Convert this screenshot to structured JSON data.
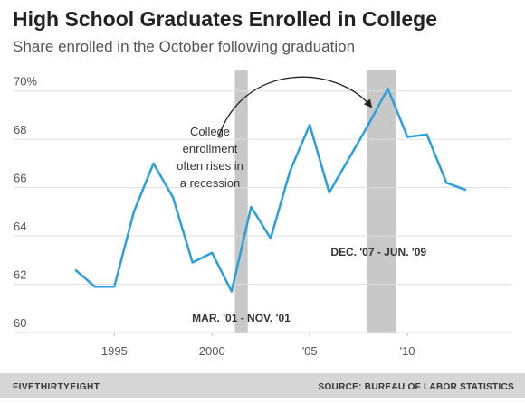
{
  "chart_data": {
    "type": "line",
    "title": "High School Graduates Enrolled in College",
    "subtitle": "Share enrolled in the October following graduation",
    "x": [
      1993,
      1994,
      1995,
      1996,
      1997,
      1998,
      1999,
      2000,
      2001,
      2002,
      2003,
      2004,
      2005,
      2006,
      2007,
      2008,
      2009,
      2010,
      2011,
      2012,
      2013
    ],
    "series": [
      {
        "name": "Enrolled",
        "color": "#2b9fd9",
        "values": [
          62.6,
          61.9,
          61.9,
          65.0,
          67.0,
          65.6,
          62.9,
          63.3,
          61.7,
          65.2,
          63.9,
          66.7,
          68.6,
          65.8,
          67.2,
          68.6,
          70.1,
          68.1,
          68.2,
          66.2,
          65.9
        ]
      }
    ],
    "xlim": [
      1991,
      2015
    ],
    "ylim": [
      60,
      71
    ],
    "xticks": [
      1995,
      2000,
      {
        "value": 2005,
        "label": "'05"
      },
      {
        "value": 2010,
        "label": "'10"
      }
    ],
    "yticks": [
      60,
      62,
      64,
      66,
      68,
      {
        "value": 70,
        "label": "70%"
      }
    ],
    "grid": true,
    "recessions": [
      {
        "start": 2001.17,
        "end": 2001.83,
        "label": "MAR. '01 - NOV. '01"
      },
      {
        "start": 2007.92,
        "end": 2009.42,
        "label": "DEC. '07 - JUN. '09"
      }
    ],
    "recession_color": "#c8c8c8",
    "annotation": [
      "College",
      "enrollment",
      "often rises in",
      "a recession"
    ],
    "brand": "FIVETHIRTYEIGHT",
    "source": "SOURCE: BUREAU OF LABOR STATISTICS"
  }
}
